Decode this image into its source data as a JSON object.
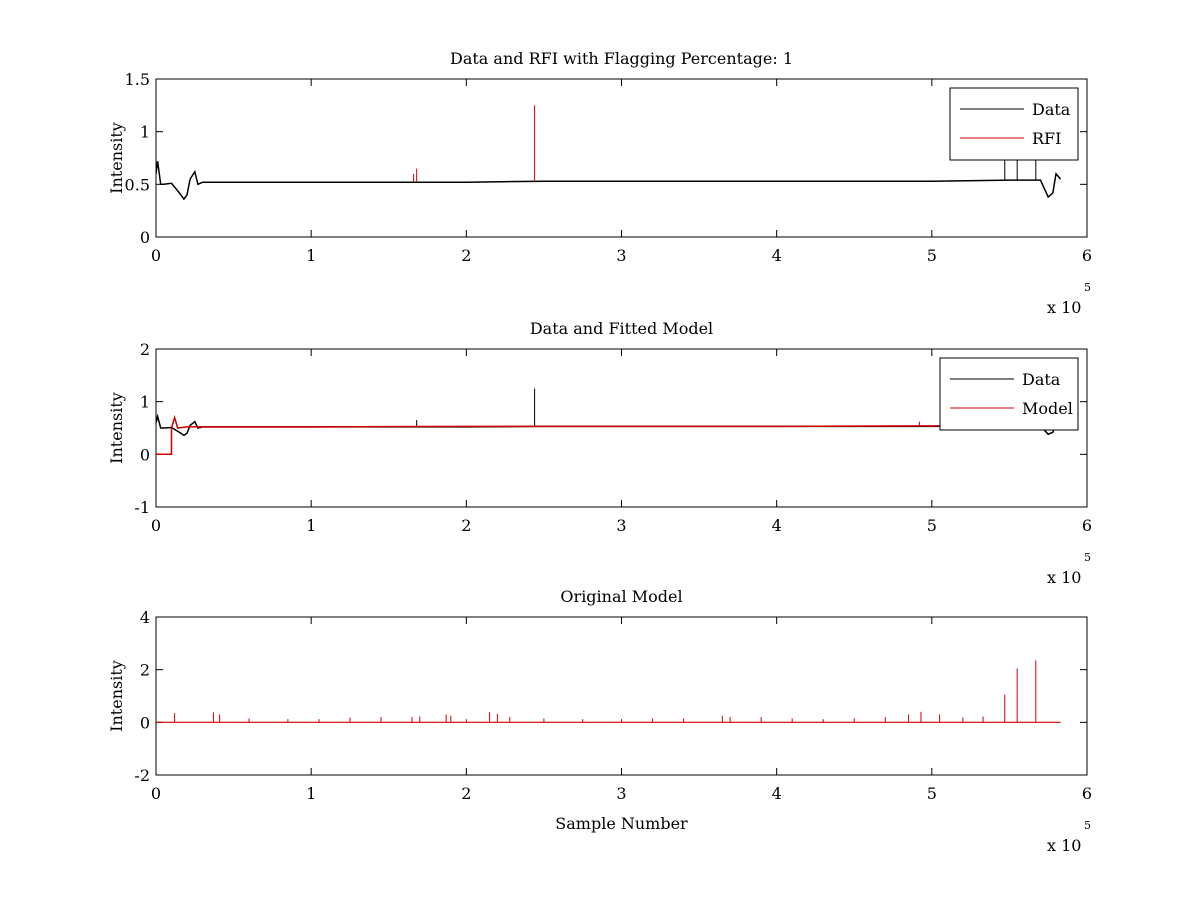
{
  "chart_data": [
    {
      "type": "line",
      "title": "Data and RFI with Flagging Percentage: 1",
      "xlabel": "",
      "ylabel": "Intensity",
      "xlim": [
        0,
        6
      ],
      "ylim": [
        0,
        1.5
      ],
      "xticks": [
        0,
        1,
        2,
        3,
        4,
        5,
        6
      ],
      "yticks": [
        0,
        0.5,
        1,
        1.5
      ],
      "x_multiplier": "x 10",
      "x_exponent": "5",
      "legend": {
        "position": "top-right",
        "entries": [
          "Data",
          "RFI"
        ]
      },
      "series": [
        {
          "name": "Data",
          "color": "#000000",
          "kind": "line",
          "x": [
            0,
            0.01,
            0.03,
            0.05,
            0.1,
            0.15,
            0.18,
            0.2,
            0.22,
            0.25,
            0.27,
            0.3,
            0.5,
            1,
            1.5,
            2,
            2.5,
            3,
            3.5,
            4,
            4.5,
            5,
            5.5,
            5.7,
            5.75,
            5.78,
            5.8,
            5.83
          ],
          "y": [
            0.6,
            0.72,
            0.5,
            0.5,
            0.51,
            0.42,
            0.36,
            0.4,
            0.55,
            0.62,
            0.5,
            0.52,
            0.52,
            0.52,
            0.52,
            0.52,
            0.53,
            0.53,
            0.53,
            0.53,
            0.53,
            0.53,
            0.54,
            0.54,
            0.38,
            0.42,
            0.6,
            0.55
          ],
          "spikes": [
            {
              "x": 5.47,
              "top": 0.75
            },
            {
              "x": 5.55,
              "top": 0.78
            },
            {
              "x": 5.67,
              "top": 0.82
            }
          ]
        },
        {
          "name": "RFI",
          "color": "#cc0000",
          "kind": "spikes",
          "base": 0.52,
          "spikes": [
            {
              "x": 1.66,
              "top": 0.6
            },
            {
              "x": 1.68,
              "top": 0.65
            },
            {
              "x": 2.44,
              "top": 1.25
            }
          ]
        }
      ]
    },
    {
      "type": "line",
      "title": "Data and Fitted Model",
      "xlabel": "",
      "ylabel": "Intensity",
      "xlim": [
        0,
        6
      ],
      "ylim": [
        -1,
        2
      ],
      "xticks": [
        0,
        1,
        2,
        3,
        4,
        5,
        6
      ],
      "yticks": [
        -1,
        0,
        1,
        2
      ],
      "x_multiplier": "x 10",
      "x_exponent": "5",
      "legend": {
        "position": "top-right",
        "entries": [
          "Data",
          "Model"
        ]
      },
      "series": [
        {
          "name": "Data",
          "color": "#000000",
          "kind": "line",
          "x": [
            0,
            0.01,
            0.03,
            0.05,
            0.1,
            0.15,
            0.18,
            0.2,
            0.22,
            0.25,
            0.27,
            0.3,
            0.5,
            1,
            1.5,
            2,
            2.5,
            3,
            3.5,
            4,
            4.5,
            5,
            5.5,
            5.7,
            5.75,
            5.78,
            5.8,
            5.83
          ],
          "y": [
            0.6,
            0.72,
            0.5,
            0.5,
            0.51,
            0.42,
            0.36,
            0.4,
            0.55,
            0.62,
            0.5,
            0.52,
            0.52,
            0.52,
            0.52,
            0.52,
            0.53,
            0.53,
            0.53,
            0.53,
            0.53,
            0.53,
            0.54,
            0.54,
            0.38,
            0.42,
            0.6,
            0.55
          ],
          "spikes": [
            {
              "x": 1.68,
              "top": 0.65
            },
            {
              "x": 2.44,
              "top": 1.25
            }
          ]
        },
        {
          "name": "Model",
          "color": "#cc0000",
          "kind": "line",
          "x": [
            0,
            0.1,
            0.1,
            0.12,
            0.14,
            0.2,
            0.5,
            1,
            2,
            3,
            4,
            5,
            5.5,
            5.83
          ],
          "y": [
            0,
            0,
            0.5,
            0.7,
            0.5,
            0.52,
            0.52,
            0.52,
            0.53,
            0.53,
            0.53,
            0.54,
            0.54,
            0.55
          ],
          "spikes": [
            {
              "x": 4.92,
              "top": 0.62
            }
          ]
        }
      ]
    },
    {
      "type": "line",
      "title": "Original Model",
      "xlabel": "Sample Number",
      "ylabel": "Intensity",
      "xlim": [
        0,
        6
      ],
      "ylim": [
        -2,
        4
      ],
      "xticks": [
        0,
        1,
        2,
        3,
        4,
        5,
        6
      ],
      "yticks": [
        -2,
        0,
        2,
        4
      ],
      "x_multiplier": "x 10",
      "x_exponent": "5",
      "series": [
        {
          "color": "#cc0000",
          "kind": "spikes",
          "base": 0,
          "baseline_xrange": [
            0,
            5.83
          ],
          "spikes": [
            {
              "x": 0.12,
              "top": 0.35
            },
            {
              "x": 0.37,
              "top": 0.38
            },
            {
              "x": 0.41,
              "top": 0.3
            },
            {
              "x": 0.6,
              "top": 0.15
            },
            {
              "x": 0.85,
              "top": 0.12
            },
            {
              "x": 1.05,
              "top": 0.12
            },
            {
              "x": 1.25,
              "top": 0.18
            },
            {
              "x": 1.45,
              "top": 0.2
            },
            {
              "x": 1.65,
              "top": 0.2
            },
            {
              "x": 1.7,
              "top": 0.22
            },
            {
              "x": 1.87,
              "top": 0.3
            },
            {
              "x": 1.9,
              "top": 0.25
            },
            {
              "x": 2.0,
              "top": 0.12
            },
            {
              "x": 2.15,
              "top": 0.38
            },
            {
              "x": 2.2,
              "top": 0.32
            },
            {
              "x": 2.28,
              "top": 0.2
            },
            {
              "x": 2.5,
              "top": 0.15
            },
            {
              "x": 2.75,
              "top": 0.12
            },
            {
              "x": 3.0,
              "top": 0.12
            },
            {
              "x": 3.2,
              "top": 0.15
            },
            {
              "x": 3.4,
              "top": 0.15
            },
            {
              "x": 3.65,
              "top": 0.25
            },
            {
              "x": 3.7,
              "top": 0.2
            },
            {
              "x": 3.9,
              "top": 0.2
            },
            {
              "x": 4.1,
              "top": 0.15
            },
            {
              "x": 4.3,
              "top": 0.12
            },
            {
              "x": 4.5,
              "top": 0.15
            },
            {
              "x": 4.7,
              "top": 0.2
            },
            {
              "x": 4.85,
              "top": 0.3
            },
            {
              "x": 4.93,
              "top": 0.4
            },
            {
              "x": 5.05,
              "top": 0.3
            },
            {
              "x": 5.2,
              "top": 0.18
            },
            {
              "x": 5.33,
              "top": 0.22
            },
            {
              "x": 5.47,
              "top": 1.05
            },
            {
              "x": 5.55,
              "top": 2.05
            },
            {
              "x": 5.67,
              "top": 2.35
            }
          ]
        }
      ]
    }
  ]
}
